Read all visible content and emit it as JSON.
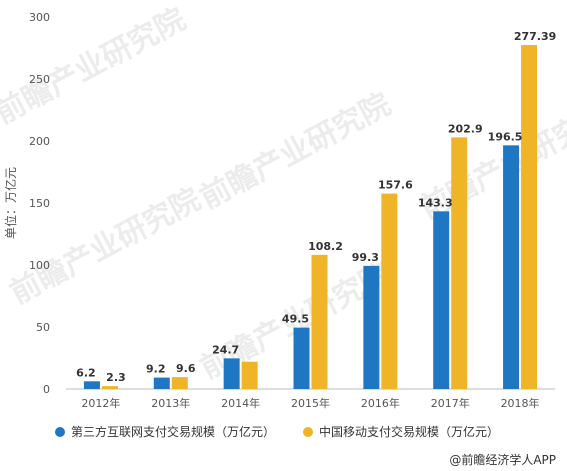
{
  "chart_data": {
    "type": "bar",
    "categories": [
      "2012年",
      "2013年",
      "2014年",
      "2015年",
      "2016年",
      "2017年",
      "2018年"
    ],
    "series": [
      {
        "name": "第三方互联网支付交易规模（万亿元）",
        "values": [
          6.2,
          9.2,
          24.7,
          49.5,
          99.3,
          143.3,
          196.5
        ],
        "color": "#1f77c4",
        "show_labels": [
          true,
          true,
          true,
          true,
          true,
          true,
          true
        ]
      },
      {
        "name": "中国移动支付交易规模（万亿元）",
        "values": [
          2.3,
          9.6,
          22.0,
          108.2,
          157.6,
          202.9,
          277.39
        ],
        "color": "#f0b429",
        "show_labels": [
          true,
          true,
          false,
          true,
          true,
          true,
          true
        ]
      }
    ],
    "data_labels": [
      [
        "6.2",
        "9.2",
        "24.7",
        "49.5",
        "99.3",
        "143.3",
        "196.5"
      ],
      [
        "2.3",
        "9.6",
        "",
        "108.2",
        "157.6",
        "202.9",
        "277.39"
      ]
    ],
    "ylabel": "单位：万亿元",
    "ylim": [
      0,
      300
    ],
    "yticks": [
      0,
      50,
      100,
      150,
      200,
      250,
      300
    ],
    "grid": false,
    "legend_position": "bottom"
  },
  "watermark": "前瞻产业研究院",
  "credit": "@前瞻经济学人APP"
}
